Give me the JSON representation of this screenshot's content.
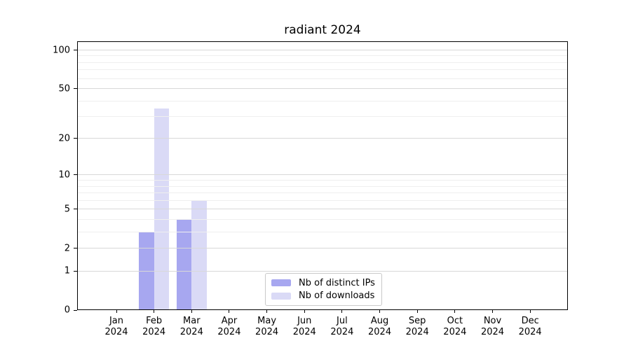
{
  "title": "radiant 2024",
  "chart_data": {
    "type": "bar",
    "title": "radiant 2024",
    "categories": [
      "Jan",
      "Feb",
      "Mar",
      "Apr",
      "May",
      "Jun",
      "Jul",
      "Aug",
      "Sep",
      "Oct",
      "Nov",
      "Dec"
    ],
    "year_label": "2024",
    "series": [
      {
        "name": "Nb of distinct IPs",
        "color": "#a7a7f0",
        "values": [
          0,
          3,
          4,
          0,
          0,
          0,
          0,
          0,
          0,
          0,
          0,
          0
        ]
      },
      {
        "name": "Nb of downloads",
        "color": "#dadaf6",
        "values": [
          0,
          35,
          6,
          0,
          0,
          0,
          0,
          0,
          0,
          0,
          0,
          0
        ]
      }
    ],
    "yaxis": {
      "scale": "log10(value+1)",
      "ticks": [
        0,
        1,
        2,
        5,
        10,
        20,
        50,
        100
      ],
      "minor_ticks": [
        3,
        4,
        6,
        7,
        8,
        9,
        30,
        40,
        60,
        70,
        80,
        90
      ],
      "max": 117
    },
    "xlabel": "",
    "ylabel": "",
    "grid": "on",
    "legend_position": "inside-bottom-center",
    "colors": {
      "background": "#ffffff",
      "frame": "#000000",
      "grid_major": "#d8d8d8",
      "grid_minor": "#efefef",
      "legend_border": "#c9c9c9"
    }
  }
}
